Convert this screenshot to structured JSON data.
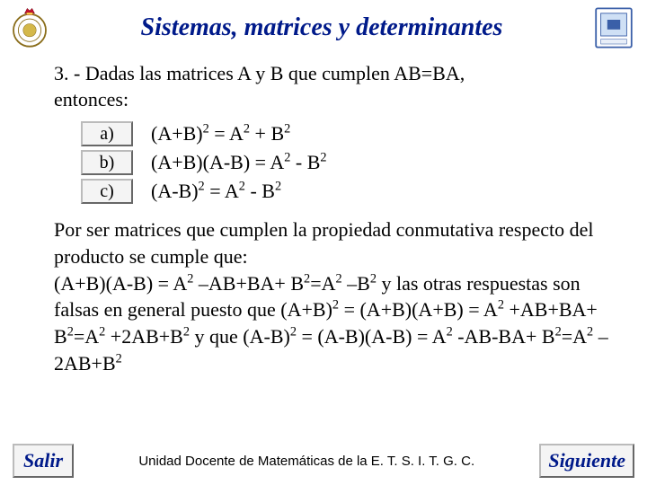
{
  "header": {
    "title": "Sistemas, matrices y determinantes",
    "title_color": "#001a8a",
    "title_fontsize": 28
  },
  "question": {
    "number": "3.",
    "text_line1": "3. - Dadas las matrices A y B que cumplen AB=BA,",
    "text_line2": "entonces:"
  },
  "options": {
    "a": {
      "label": "a)",
      "equation_html": "(A+B)<sup>2</sup> = A<sup>2</sup> + B<sup>2</sup>"
    },
    "b": {
      "label": "b)",
      "equation_html": "(A+B)(A-B) = A<sup>2</sup> - B<sup>2</sup>"
    },
    "c": {
      "label": "c)",
      "equation_html": "(A-B)<sup>2</sup> = A<sup>2</sup> - B<sup>2</sup>"
    }
  },
  "explanation": {
    "html": "Por ser matrices que cumplen la propiedad conmutativa respecto del producto se cumple que:<br>(A+B)(A-B) = A<sup>2</sup> –AB+BA+ B<sup>2</sup>=A<sup>2</sup> –B<sup>2</sup> y las otras respuestas son falsas en general puesto que (A+B)<sup>2</sup> = (A+B)(A+B) = A<sup>2</sup> +AB+BA+ B<sup>2</sup>=A<sup>2</sup> +2AB+B<sup>2</sup> y que (A-B)<sup>2</sup> = (A-B)(A-B) = A<sup>2</sup> -AB-BA+ B<sup>2</sup>=A<sup>2</sup> –2AB+B<sup>2</sup>"
  },
  "footer": {
    "salir": "Salir",
    "unit_text": "Unidad Docente de Matemáticas de la E. T. S. I. T. G. C.",
    "siguiente": "Siguiente"
  },
  "colors": {
    "accent": "#001a8a",
    "button_bg": "#f4f4f4",
    "button_border": "#bbbbbb",
    "text": "#000000",
    "background": "#ffffff"
  }
}
